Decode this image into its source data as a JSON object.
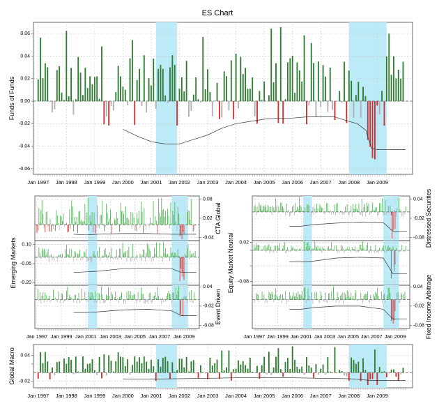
{
  "page_title": "ES Chart",
  "colors": {
    "positive": "#2e7d32",
    "positive_light": "#4caf50",
    "negative": "#d32f2f",
    "negative_light": "#b0b0b0",
    "shade": "#bdeaf7",
    "es_line": "#333333",
    "grid": "#cccccc"
  },
  "date_ticks_top": [
    "Jan 1997",
    "Jan 1998",
    "Jan 1999",
    "Jan 2000",
    "Jan 2001",
    "Jan 2002",
    "Jan 2003",
    "Jan 2004",
    "Jan 2005",
    "Jan 2006",
    "Jan 2007",
    "Jan 2008",
    "Jan 2009"
  ],
  "date_ticks_grid": [
    "Jan 1997",
    "Jan 1999",
    "Jan 2001",
    "Jan 2003",
    "Jan 2005",
    "Jan 2007",
    "Jan 2009"
  ],
  "shaded_periods": [
    [
      "2001-03",
      "2001-12"
    ],
    [
      "2008-01",
      "2009-05"
    ]
  ],
  "chart_data": [
    {
      "type": "bar",
      "name": "Funds of Funds",
      "ylabel": "Funds of Funds",
      "ylim": [
        -0.065,
        0.07
      ],
      "y_ticks": [
        -0.06,
        -0.04,
        -0.02,
        0.0,
        0.02,
        0.04,
        0.06
      ],
      "y_tick_labels": [
        "-0.06",
        "-0.04",
        "-0.02",
        "0.00",
        "0.02",
        "0.04",
        "0.06"
      ],
      "x_range": [
        "1996-11",
        "2010-04"
      ],
      "monthly_returns_start": "1997-01",
      "es_line": [
        [
          2000.0,
          -0.025
        ],
        [
          2000.5,
          -0.031
        ],
        [
          2001.0,
          -0.036
        ],
        [
          2001.5,
          -0.038
        ],
        [
          2002.0,
          -0.038
        ],
        [
          2002.5,
          -0.034
        ],
        [
          2003.0,
          -0.03
        ],
        [
          2003.5,
          -0.024
        ],
        [
          2004.0,
          -0.02
        ],
        [
          2004.5,
          -0.018
        ],
        [
          2005.0,
          -0.016
        ],
        [
          2005.5,
          -0.015
        ],
        [
          2006.0,
          -0.015
        ],
        [
          2006.5,
          -0.014
        ],
        [
          2007.0,
          -0.014
        ],
        [
          2007.5,
          -0.014
        ],
        [
          2008.0,
          -0.018
        ],
        [
          2008.3,
          -0.02
        ],
        [
          2008.6,
          -0.026
        ],
        [
          2008.8,
          -0.042
        ],
        [
          2009.0,
          -0.043
        ],
        [
          2009.5,
          -0.043
        ],
        [
          2010.0,
          -0.043
        ]
      ]
    },
    {
      "type": "bar",
      "name": "CTA Global",
      "ylabel": "CTA Global",
      "ylim": [
        -0.05,
        0.09
      ],
      "y_ticks": [
        -0.04,
        0.02,
        0.08
      ],
      "y_tick_labels": [
        "-0.04",
        "0.02",
        "0.08"
      ],
      "es_line": [
        [
          2000.0,
          -0.03
        ],
        [
          2001.0,
          -0.032
        ],
        [
          2002.0,
          -0.03
        ],
        [
          2004.0,
          -0.028
        ],
        [
          2006.0,
          -0.028
        ],
        [
          2008.0,
          -0.03
        ],
        [
          2010.0,
          -0.03
        ]
      ]
    },
    {
      "type": "bar",
      "name": "Emerging Markets",
      "ylabel": "Emerging Markets",
      "ylim": [
        -0.22,
        0.13
      ],
      "y_ticks": [
        -0.2,
        -0.05,
        0.1
      ],
      "y_tick_labels": [
        "-0.20",
        "-0.05",
        "0.10"
      ],
      "es_line": [
        [
          2000.0,
          -0.12
        ],
        [
          2001.0,
          -0.115
        ],
        [
          2002.0,
          -0.11
        ],
        [
          2004.0,
          -0.09
        ],
        [
          2006.0,
          -0.085
        ],
        [
          2008.0,
          -0.09
        ],
        [
          2008.8,
          -0.12
        ],
        [
          2010.0,
          -0.12
        ]
      ]
    },
    {
      "type": "bar",
      "name": "Event Driven",
      "ylabel": "Event Driven",
      "ylim": [
        -0.09,
        0.045
      ],
      "y_ticks": [
        -0.08,
        -0.02,
        0.04
      ],
      "y_tick_labels": [
        "-0.08",
        "-0.02",
        "0.04"
      ],
      "es_line": [
        [
          2000.0,
          -0.04
        ],
        [
          2001.0,
          -0.04
        ],
        [
          2002.0,
          -0.038
        ],
        [
          2004.0,
          -0.032
        ],
        [
          2006.0,
          -0.03
        ],
        [
          2008.0,
          -0.035
        ],
        [
          2008.8,
          -0.05
        ],
        [
          2010.0,
          -0.05
        ]
      ]
    },
    {
      "type": "bar",
      "name": "Distressed Securities",
      "ylabel": "Distressed Securities",
      "ylim": [
        -0.09,
        0.05
      ],
      "y_ticks": [
        -0.08,
        -0.02,
        0.04
      ],
      "y_tick_labels": [
        "-0.08",
        "-0.02",
        "0.04"
      ],
      "es_line": [
        [
          2000.0,
          -0.045
        ],
        [
          2001.0,
          -0.045
        ],
        [
          2002.0,
          -0.04
        ],
        [
          2004.0,
          -0.035
        ],
        [
          2006.0,
          -0.032
        ],
        [
          2008.0,
          -0.034
        ],
        [
          2008.8,
          -0.06
        ],
        [
          2010.0,
          -0.06
        ]
      ]
    },
    {
      "type": "bar",
      "name": "Equity Market Neutral",
      "ylabel": "Equity Market Neutral",
      "ylim": [
        -0.09,
        0.025
      ],
      "y_ticks": [
        -0.08,
        -0.04,
        0.0,
        0.02
      ],
      "y_tick_labels": [
        "-0.08",
        "",
        "",
        "0.02"
      ],
      "es_line": [
        [
          2000.0,
          -0.03
        ],
        [
          2001.0,
          -0.03
        ],
        [
          2002.0,
          -0.028
        ],
        [
          2004.0,
          -0.02
        ],
        [
          2006.0,
          -0.018
        ],
        [
          2008.0,
          -0.02
        ],
        [
          2008.8,
          -0.06
        ],
        [
          2010.0,
          -0.06
        ]
      ]
    },
    {
      "type": "bar",
      "name": "Fixed Income Arbitrage",
      "ylabel": "Fixed Income Arbitrage",
      "ylim": [
        -0.09,
        0.045
      ],
      "y_ticks": [
        -0.08,
        -0.02,
        0.04
      ],
      "y_tick_labels": [
        "-0.08",
        "-0.02",
        "0.04"
      ],
      "es_line": [
        [
          2000.0,
          -0.03
        ],
        [
          2001.0,
          -0.03
        ],
        [
          2002.0,
          -0.025
        ],
        [
          2004.0,
          -0.02
        ],
        [
          2006.0,
          -0.02
        ],
        [
          2008.0,
          -0.03
        ],
        [
          2008.8,
          -0.06
        ],
        [
          2010.0,
          -0.06
        ]
      ]
    },
    {
      "type": "bar",
      "name": "Global Macro",
      "ylabel": "Global Macro",
      "ylim": [
        -0.035,
        0.065
      ],
      "y_ticks": [
        -0.02,
        0.02,
        0.04
      ],
      "y_tick_labels": [
        "-0.02",
        "",
        "0.04"
      ],
      "es_line": [
        [
          2000.0,
          -0.015
        ],
        [
          2001.0,
          -0.015
        ],
        [
          2002.0,
          -0.014
        ],
        [
          2004.0,
          -0.012
        ],
        [
          2006.0,
          -0.012
        ],
        [
          2008.0,
          -0.014
        ],
        [
          2008.8,
          -0.018
        ],
        [
          2010.0,
          -0.018
        ]
      ]
    }
  ]
}
